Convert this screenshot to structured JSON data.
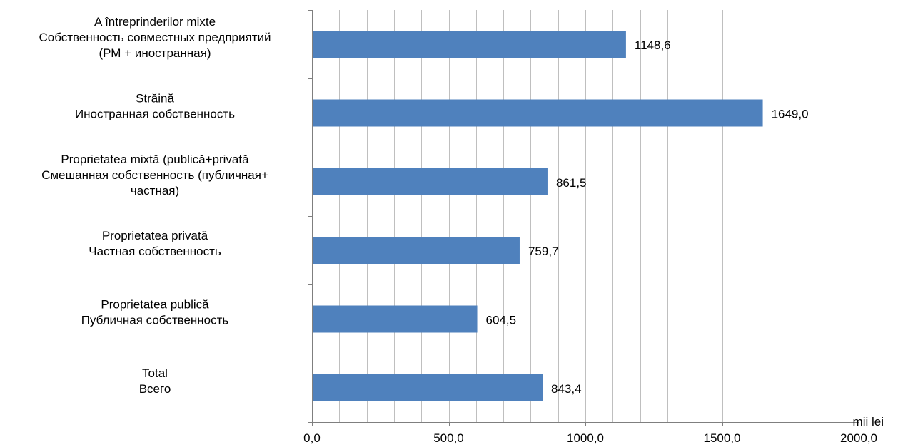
{
  "chart_data": {
    "type": "bar",
    "orientation": "horizontal",
    "categories": [
      [
        "A întreprinderilor mixte",
        "Собственность совместных предприятий",
        "(РМ + иностранная)"
      ],
      [
        "Străină",
        "Иностранная собственность"
      ],
      [
        "Proprietatea mixtă (publică+privată",
        "Смешанная собственность (публичная+",
        "частная)"
      ],
      [
        "Proprietatea  privată",
        "Частная собственность"
      ],
      [
        "Proprietatea publică",
        "Публичная собственность"
      ],
      [
        "Total",
        "Всего"
      ]
    ],
    "values": [
      1148.6,
      1649.0,
      861.5,
      759.7,
      604.5,
      843.4
    ],
    "value_labels": [
      "1148,6",
      "1649,0",
      "861,5",
      "759,7",
      "604,5",
      "843,4"
    ],
    "xlim": [
      0,
      2000
    ],
    "x_major_ticks": [
      0,
      500,
      1000,
      1500,
      2000
    ],
    "x_tick_labels": [
      "0,0",
      "500,0",
      "1000,0",
      "1500,0",
      "2000,0"
    ],
    "x_gridline_step": 100,
    "grid": true,
    "unit_label": "mii lei",
    "bar_color": "#4f81bd",
    "grid_color": "#bfbfbf",
    "axis_color": "#7f7f7f"
  }
}
